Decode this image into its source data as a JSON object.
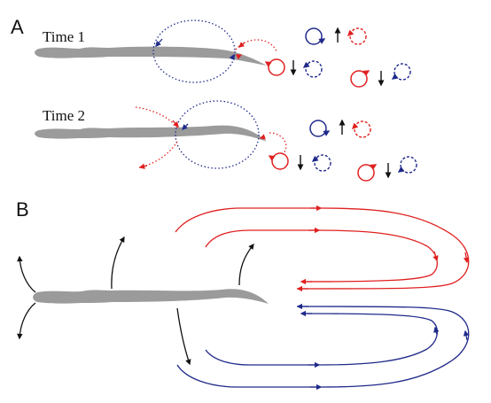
{
  "panels": {
    "a": {
      "letter": "A"
    },
    "b": {
      "letter": "B"
    }
  },
  "time_labels": {
    "t1": "Time 1",
    "t2": "Time 2"
  },
  "colors": {
    "fish_body": "#9b9b9b",
    "red_vortex": "#e02020",
    "blue_vortex": "#1f2a8a",
    "arrow_black": "#111111"
  }
}
